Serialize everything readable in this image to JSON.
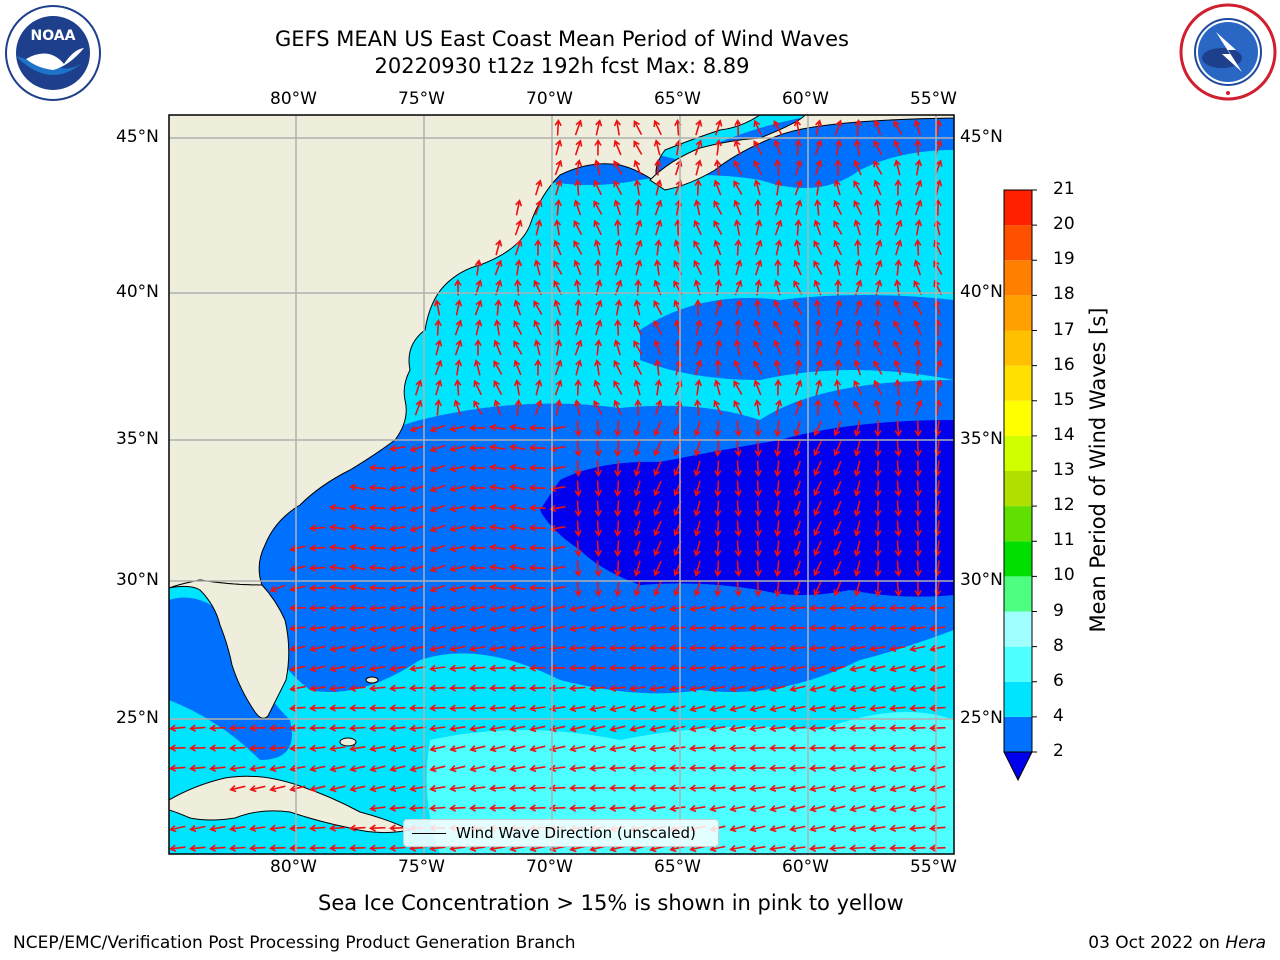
{
  "header": {
    "title": "GEFS MEAN US East Coast Mean Period of Wind Waves",
    "subtitle": "20220930 t12z 192h fcst   Max: 8.89"
  },
  "logos": {
    "left": "NOAA",
    "left_ring_text": "NATIONAL OCEANIC AND ATMOSPHERIC ADMINISTRATION · U.S. DEPARTMENT OF COMMERCE",
    "right_ring_text": "NATIONAL WEATHER SERVICE"
  },
  "map": {
    "lon_labels": [
      "80°W",
      "75°W",
      "70°W",
      "65°W",
      "60°W",
      "55°W"
    ],
    "lat_labels": [
      "45°N",
      "40°N",
      "35°N",
      "30°N",
      "25°N"
    ],
    "legend_label": "Wind Wave Direction (unscaled)"
  },
  "colorbar": {
    "title": "Mean Period of Wind Waves [s]",
    "ticks": [
      "2",
      "4",
      "6",
      "8",
      "9",
      "10",
      "11",
      "12",
      "13",
      "14",
      "15",
      "16",
      "17",
      "18",
      "19",
      "20",
      "21"
    ],
    "colors": [
      "#0070ff",
      "#00e5ff",
      "#4dffff",
      "#a0ffff",
      "#4dff80",
      "#00e000",
      "#5fe000",
      "#b0e000",
      "#d0ff00",
      "#ffff00",
      "#ffe000",
      "#ffc000",
      "#ffa000",
      "#ff8000",
      "#ff5000",
      "#ff2000",
      "#ff0000"
    ],
    "under_color": "#0000ee"
  },
  "footer": {
    "note": "Sea Ice Concentration > 15% is shown in pink to yellow",
    "credit": "NCEP/EMC/Verification Post Processing Product Generation Branch",
    "date_prefix": "03 Oct 2022 on",
    "date_host": "Hera"
  }
}
